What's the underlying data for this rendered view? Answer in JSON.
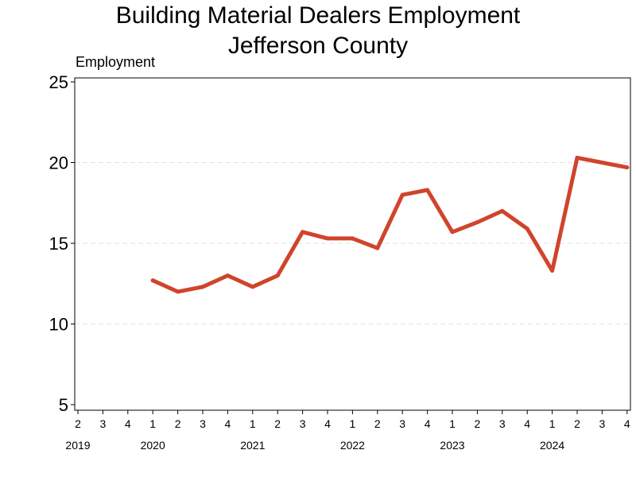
{
  "chart_data": {
    "type": "line",
    "title": "Building Material Dealers Employment",
    "subtitle": "Jefferson County",
    "ylabel": "Employment",
    "xlabel": "",
    "ylim": [
      5,
      25
    ],
    "yticks": [
      5,
      10,
      15,
      20,
      25
    ],
    "grid": true,
    "x_quarters": [
      "2",
      "3",
      "4",
      "1",
      "2",
      "3",
      "4",
      "1",
      "2",
      "3",
      "4",
      "1",
      "2",
      "3",
      "4",
      "1",
      "2",
      "3",
      "4",
      "1",
      "2",
      "3",
      "4"
    ],
    "x_years": [
      {
        "label": "2019",
        "quarter_index": 0
      },
      {
        "label": "2020",
        "quarter_index": 3
      },
      {
        "label": "2021",
        "quarter_index": 7
      },
      {
        "label": "2022",
        "quarter_index": 11
      },
      {
        "label": "2023",
        "quarter_index": 15
      },
      {
        "label": "2024",
        "quarter_index": 19
      }
    ],
    "series": [
      {
        "color": "#d0442c",
        "points": [
          {
            "period": "2020 Q1",
            "quarter_index": 3,
            "value": 12.7
          },
          {
            "period": "2020 Q2",
            "quarter_index": 4,
            "value": 12.0
          },
          {
            "period": "2020 Q3",
            "quarter_index": 5,
            "value": 12.3
          },
          {
            "period": "2020 Q4",
            "quarter_index": 6,
            "value": 13.0
          },
          {
            "period": "2021 Q1",
            "quarter_index": 7,
            "value": 12.3
          },
          {
            "period": "2021 Q2",
            "quarter_index": 8,
            "value": 13.0
          },
          {
            "period": "2021 Q3",
            "quarter_index": 9,
            "value": 15.7
          },
          {
            "period": "2021 Q4",
            "quarter_index": 10,
            "value": 15.3
          },
          {
            "period": "2022 Q1",
            "quarter_index": 11,
            "value": 15.3
          },
          {
            "period": "2022 Q2",
            "quarter_index": 12,
            "value": 14.7
          },
          {
            "period": "2022 Q3",
            "quarter_index": 13,
            "value": 18.0
          },
          {
            "period": "2022 Q4",
            "quarter_index": 14,
            "value": 18.3
          },
          {
            "period": "2023 Q1",
            "quarter_index": 15,
            "value": 15.7
          },
          {
            "period": "2023 Q2",
            "quarter_index": 16,
            "value": 16.3
          },
          {
            "period": "2023 Q3",
            "quarter_index": 17,
            "value": 17.0
          },
          {
            "period": "2023 Q4",
            "quarter_index": 18,
            "value": 15.9
          },
          {
            "period": "2024 Q1",
            "quarter_index": 19,
            "value": 13.3
          },
          {
            "period": "2024 Q2",
            "quarter_index": 20,
            "value": 20.3
          },
          {
            "period": "2024 Q3",
            "quarter_index": 21,
            "value": 20.0
          },
          {
            "period": "2024 Q4",
            "quarter_index": 22,
            "value": 19.7
          }
        ]
      }
    ]
  }
}
